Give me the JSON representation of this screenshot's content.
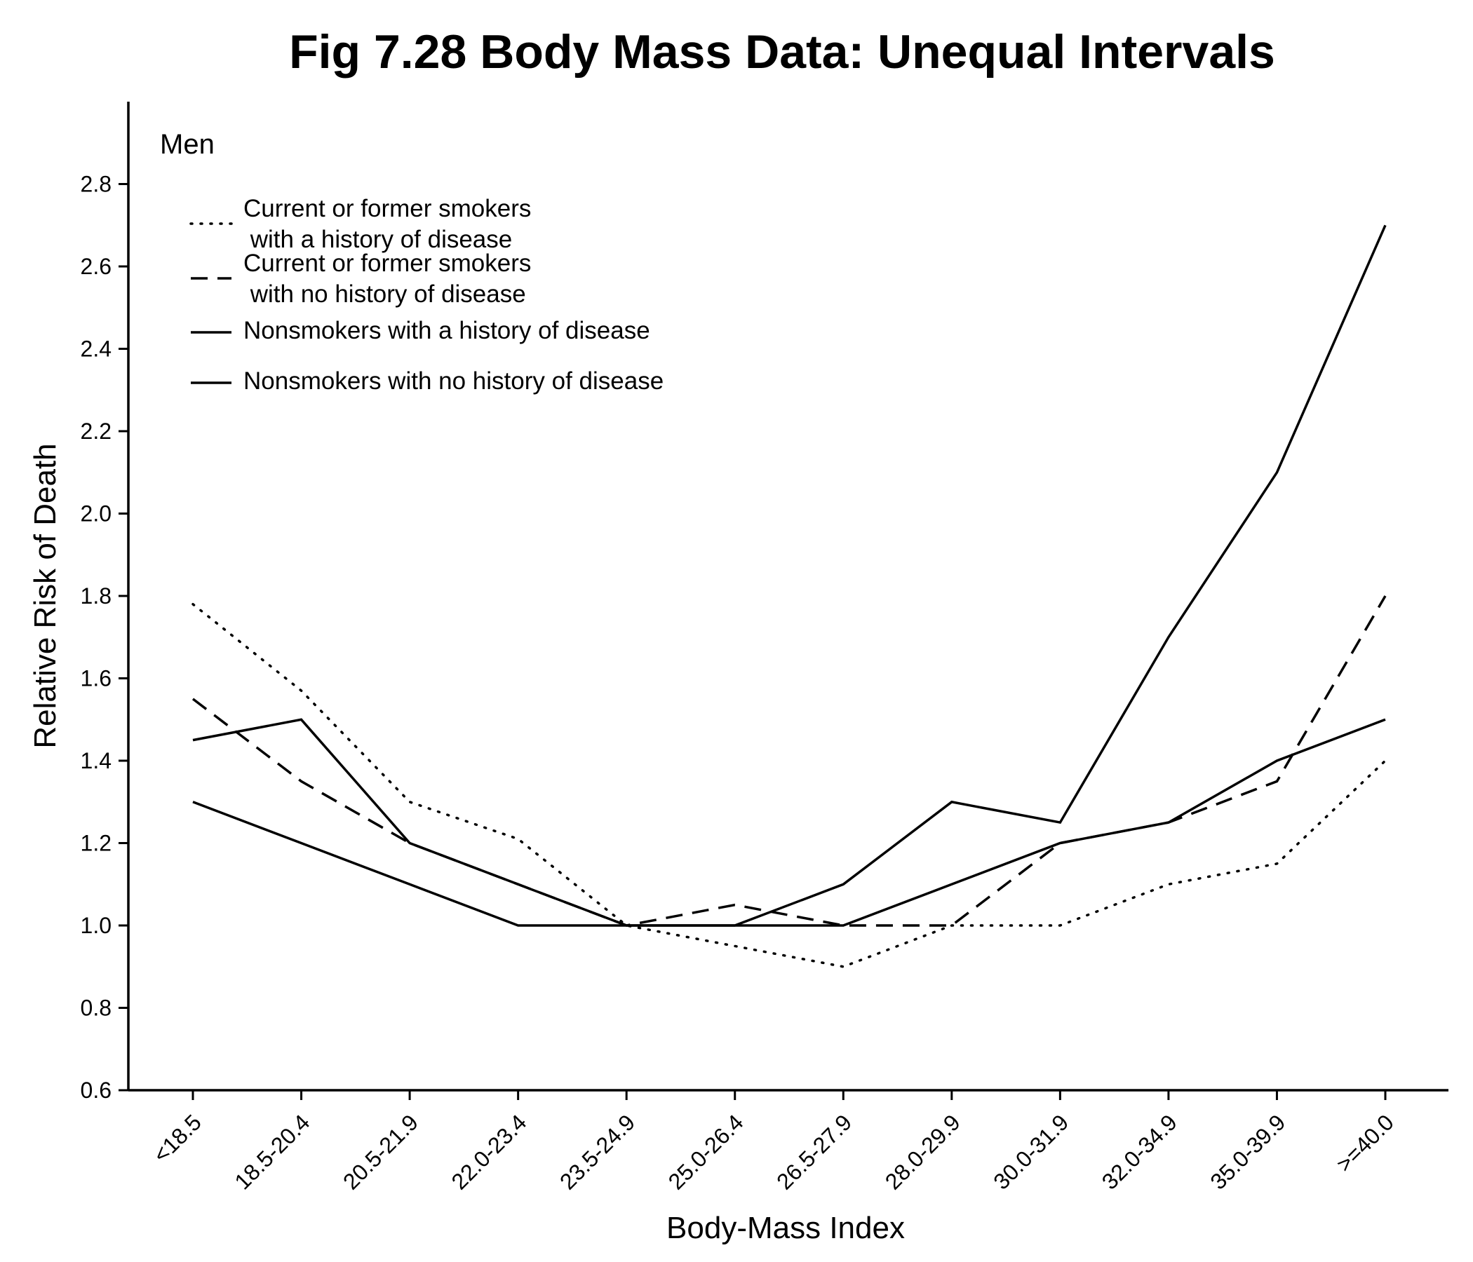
{
  "chart_data": {
    "type": "line",
    "title": "Fig 7.28 Body Mass Data: Unequal Intervals",
    "panel_label": "Men",
    "xlabel": "Body-Mass Index",
    "ylabel": "Relative Risk of Death",
    "ylim": [
      0.6,
      3.0
    ],
    "yticks": [
      "0.6",
      "0.8",
      "1.0",
      "1.2",
      "1.4",
      "1.6",
      "1.8",
      "2.0",
      "2.2",
      "2.4",
      "2.6",
      "2.8"
    ],
    "categories": [
      "<18.5",
      "18.5-20.4",
      "20.5-21.9",
      "22.0-23.4",
      "23.5-24.9",
      "25.0-26.4",
      "26.5-27.9",
      "28.0-29.9",
      "30.0-31.9",
      "32.0-34.9",
      "35.0-39.9",
      ">=40.0"
    ],
    "legend_position": "top-left",
    "grid": false,
    "series": [
      {
        "name_lines": [
          "Current or former smokers",
          " with a history of disease"
        ],
        "style": "dotted",
        "values": [
          1.78,
          1.57,
          1.3,
          1.21,
          1.0,
          0.95,
          0.9,
          1.0,
          1.0,
          1.1,
          1.15,
          1.4
        ]
      },
      {
        "name_lines": [
          "Current or former smokers",
          " with no history of disease"
        ],
        "style": "dashed",
        "values": [
          1.55,
          1.35,
          1.2,
          1.1,
          1.0,
          1.05,
          1.0,
          1.0,
          1.2,
          1.25,
          1.35,
          1.8
        ]
      },
      {
        "name_lines": [
          "Nonsmokers with a history of disease"
        ],
        "style": "solid",
        "values": [
          1.45,
          1.5,
          1.2,
          1.1,
          1.0,
          1.0,
          1.1,
          1.3,
          1.25,
          1.7,
          2.1,
          2.7
        ]
      },
      {
        "name_lines": [
          "Nonsmokers with no history of disease"
        ],
        "style": "solid",
        "values": [
          1.3,
          1.2,
          1.1,
          1.0,
          1.0,
          1.0,
          1.0,
          1.1,
          1.2,
          1.25,
          1.4,
          1.5
        ]
      }
    ]
  }
}
